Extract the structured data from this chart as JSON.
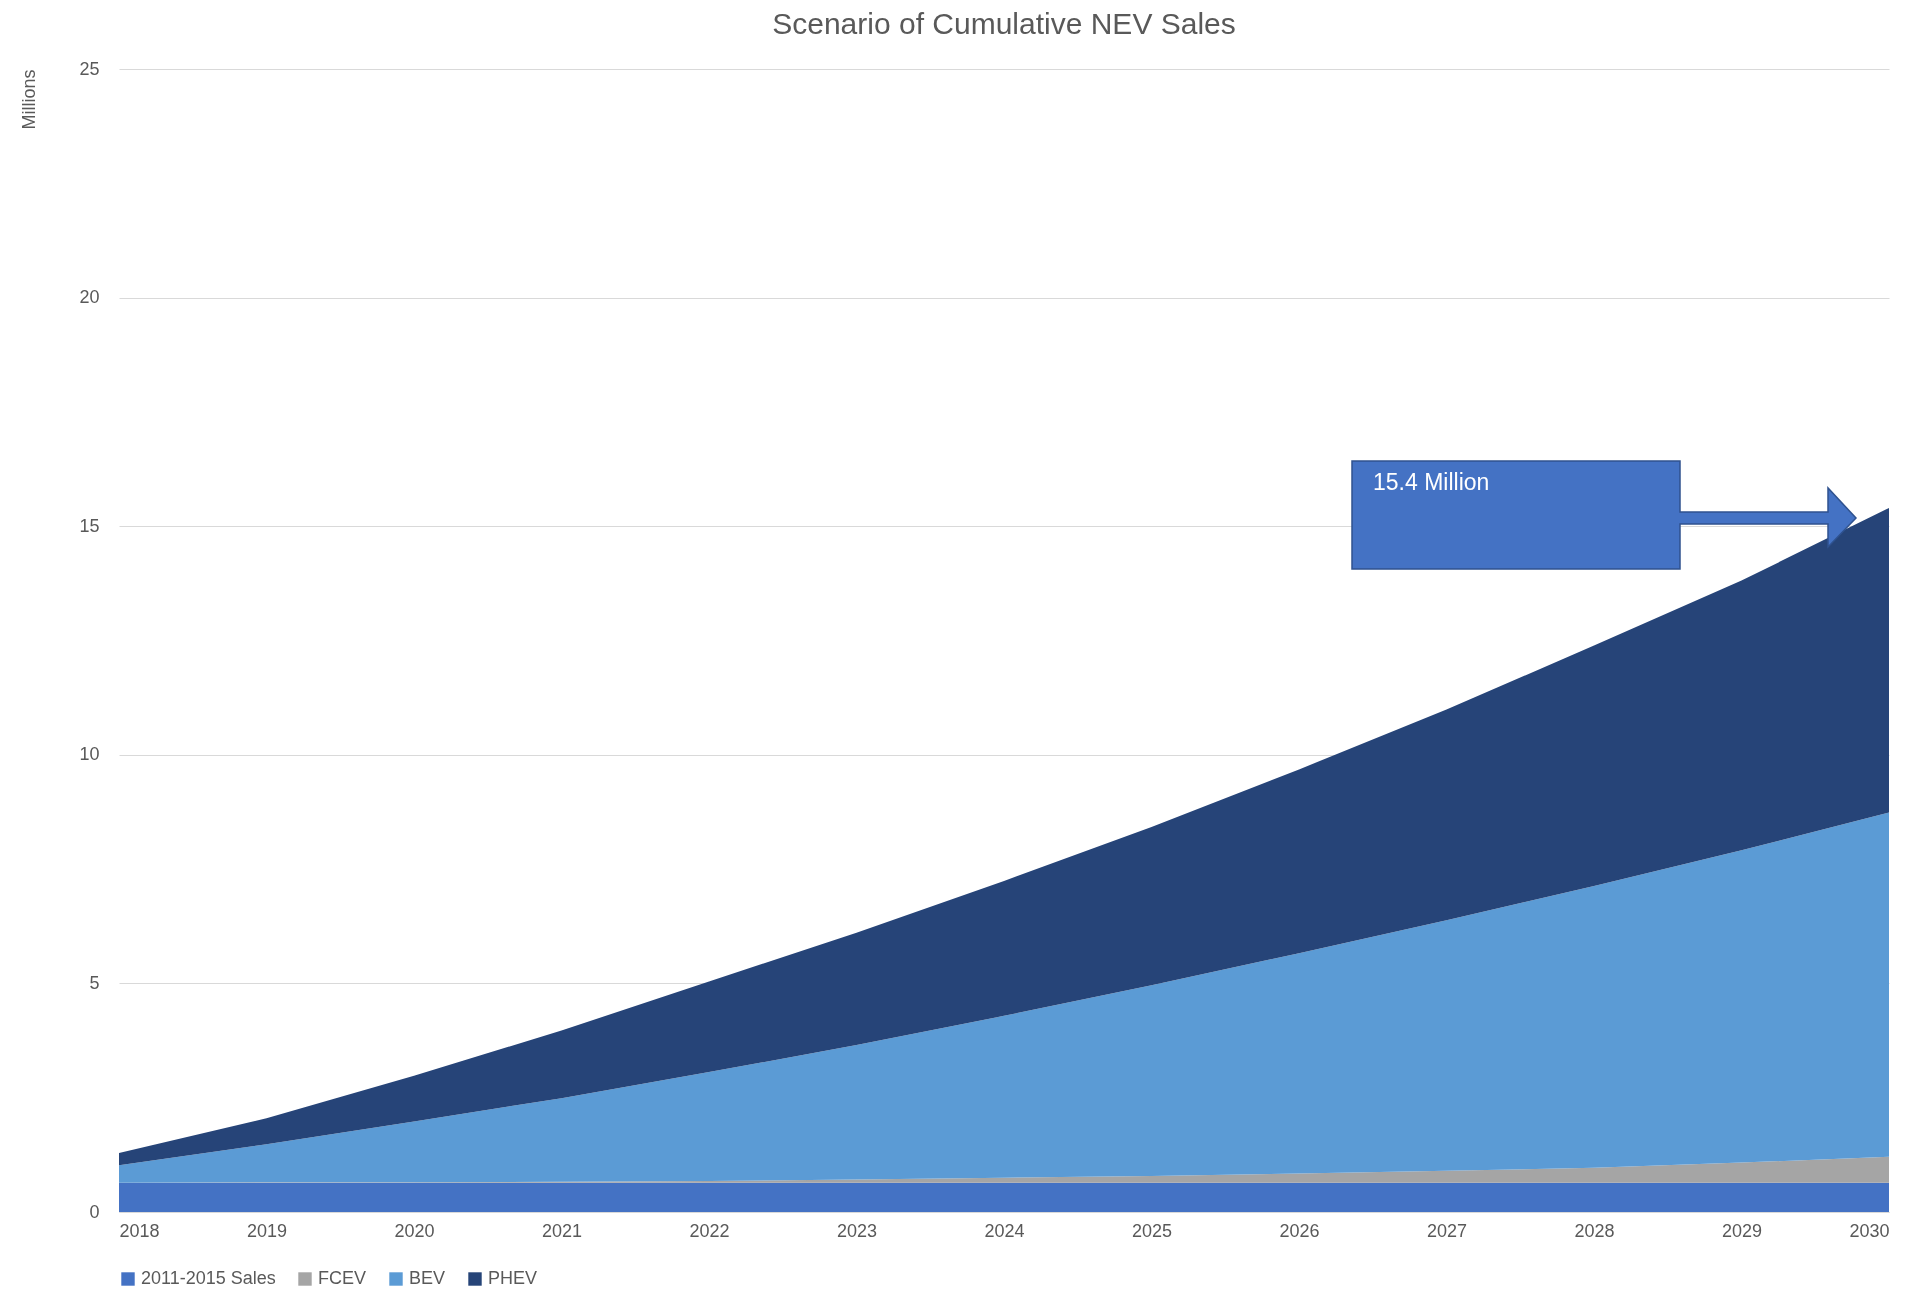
{
  "chart_data": {
    "type": "area",
    "stacked": true,
    "title": "Scenario of Cumulative NEV Sales",
    "ylabel": "Millions",
    "x": [
      2018,
      2019,
      2020,
      2021,
      2022,
      2023,
      2024,
      2025,
      2026,
      2027,
      2028,
      2029,
      2030
    ],
    "xlim": [
      2018,
      2030
    ],
    "xticks": [
      2018,
      2019,
      2020,
      2021,
      2022,
      2023,
      2024,
      2025,
      2026,
      2027,
      2028,
      2029,
      2030
    ],
    "ylim": [
      0,
      25
    ],
    "yticks": [
      0,
      5,
      10,
      15,
      20,
      25
    ],
    "grid": "y",
    "legend": "bottom",
    "series": [
      {
        "name": "2011-2015 Sales",
        "color": "#4472c4",
        "values": [
          0.64,
          0.64,
          0.64,
          0.64,
          0.64,
          0.64,
          0.64,
          0.64,
          0.64,
          0.64,
          0.64,
          0.64,
          0.64
        ]
      },
      {
        "name": "FCEV",
        "color": "#a5a5a5",
        "values": [
          0,
          0.01,
          0.01,
          0.02,
          0.04,
          0.07,
          0.11,
          0.15,
          0.2,
          0.26,
          0.33,
          0.44,
          0.57
        ]
      },
      {
        "name": "BEV",
        "color": "#5b9bd5",
        "values": [
          0.38,
          0.83,
          1.33,
          1.83,
          2.38,
          2.94,
          3.54,
          4.17,
          4.82,
          5.48,
          6.16,
          6.83,
          7.53
        ]
      },
      {
        "name": "PHEV",
        "color": "#264478",
        "values": [
          0.27,
          0.57,
          1.0,
          1.48,
          1.98,
          2.46,
          2.95,
          3.46,
          4.02,
          4.61,
          5.26,
          5.9,
          6.66
        ]
      }
    ],
    "annotations": [
      "15.4 Million"
    ]
  }
}
